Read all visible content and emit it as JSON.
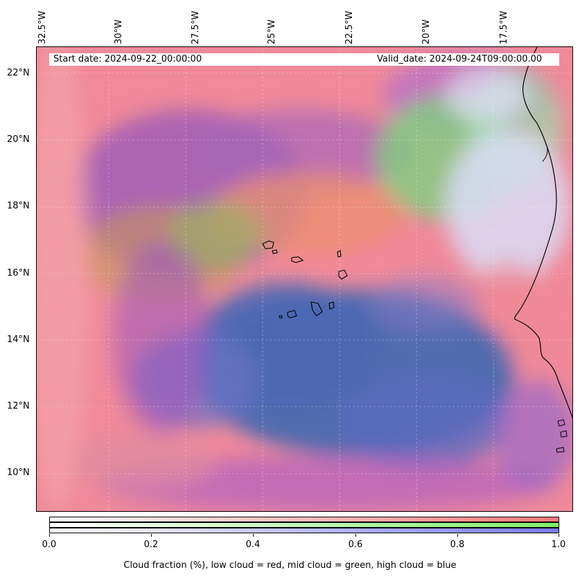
{
  "map": {
    "start_date": "Start date: 2024-09-22_00:00:00",
    "valid_date": "Valid_date: 2024-09-24T09:00:00.00",
    "lon_labels": [
      "32.5°W",
      "30°W",
      "27.5°W",
      "25°W",
      "22.5°W",
      "20°W",
      "17.5°W"
    ],
    "lat_labels": [
      "22°N",
      "20°N",
      "18°N",
      "16°N",
      "14°N",
      "12°N",
      "10°N"
    ]
  },
  "colorbar": {
    "ticks": [
      "0.0",
      "0.2",
      "0.4",
      "0.6",
      "0.8",
      "1.0"
    ],
    "caption": "Cloud fraction (%), low cloud = red, mid cloud = green, high cloud = blue",
    "colors": {
      "low": "#ff7a7a",
      "mid": "#7bef6a",
      "high": "#7a7aef"
    }
  }
}
